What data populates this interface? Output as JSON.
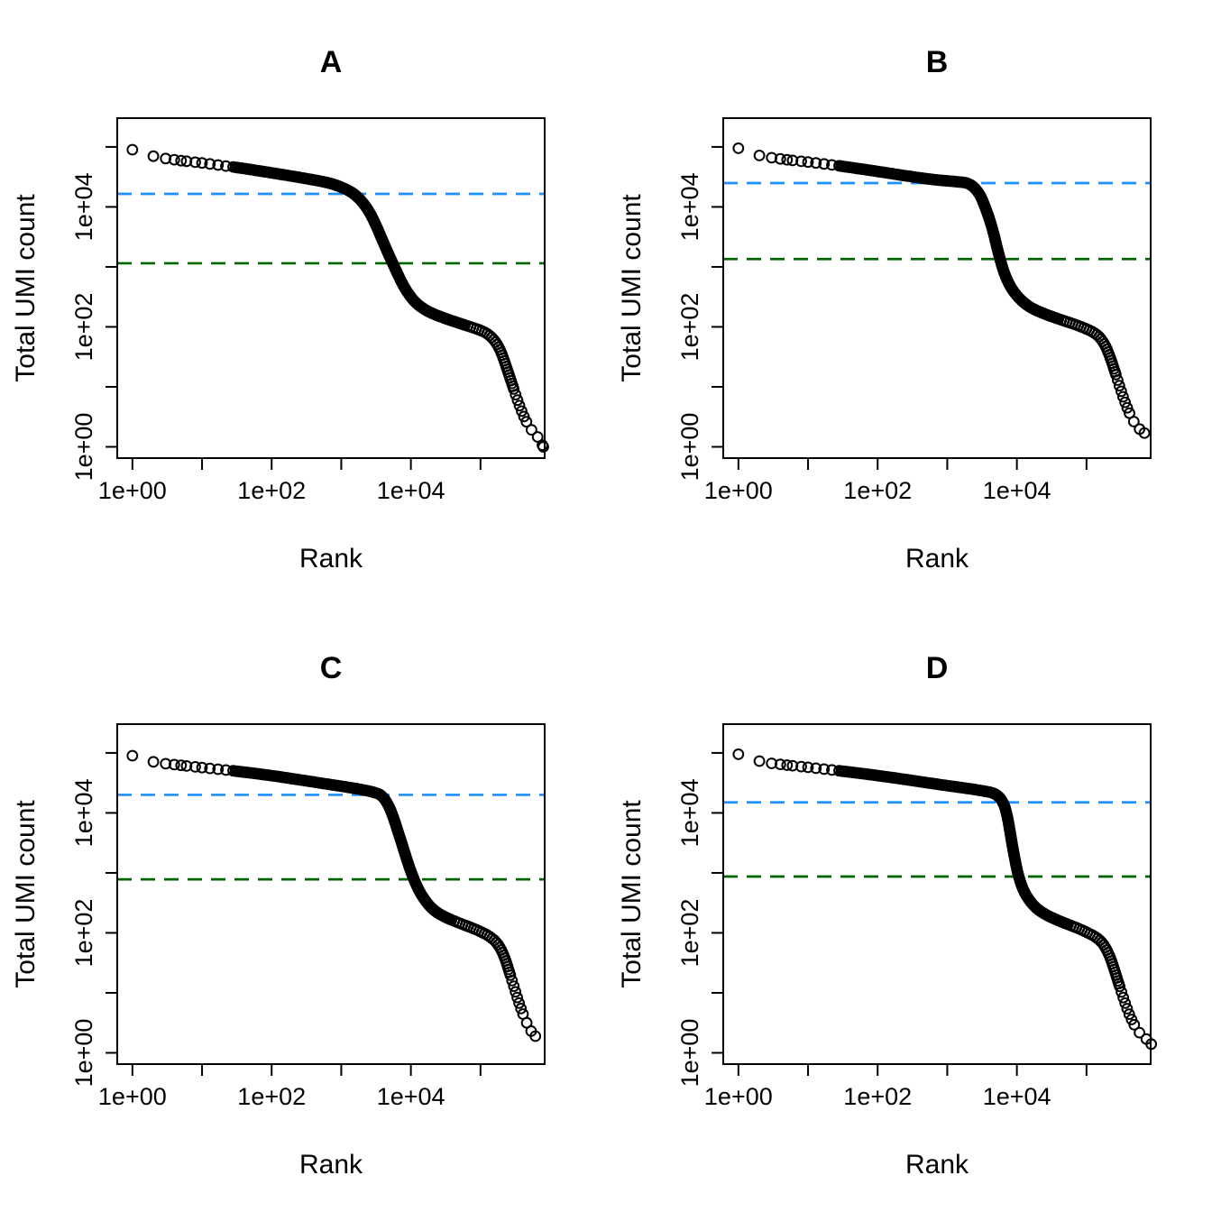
{
  "figure": {
    "background": "#FFFFFF",
    "colors": {
      "point_stroke": "#000000",
      "knee_line": "#1E90FF",
      "inflection_line": "#006400",
      "axis": "#000000"
    },
    "axis": {
      "xlabel": "Rank",
      "ylabel": "Total UMI count",
      "xlim_log10": [
        -0.218,
        5.922
      ],
      "ylim_log10": [
        -0.188,
        5.48
      ],
      "x_ticks": [
        {
          "value": 1,
          "label": "1e+00"
        },
        {
          "value": 10,
          "label": ""
        },
        {
          "value": 100,
          "label": "1e+02"
        },
        {
          "value": 1000,
          "label": ""
        },
        {
          "value": 10000,
          "label": "1e+04"
        },
        {
          "value": 100000,
          "label": ""
        }
      ],
      "y_ticks": [
        {
          "value": 1,
          "label": "1e+00"
        },
        {
          "value": 10,
          "label": ""
        },
        {
          "value": 100,
          "label": "1e+02"
        },
        {
          "value": 1000,
          "label": ""
        },
        {
          "value": 10000,
          "label": "1e+04"
        },
        {
          "value": 100000,
          "label": ""
        }
      ]
    }
  },
  "chart_data": [
    {
      "type": "scatter",
      "title": "A",
      "xlabel": "Rank",
      "ylabel": "Total UMI count",
      "xscale": "log10",
      "yscale": "log10",
      "hlines": [
        {
          "name": "knee",
          "value": 16500,
          "color": "#1E90FF"
        },
        {
          "name": "inflection",
          "value": 1150,
          "color": "#006400"
        }
      ],
      "points": [
        [
          1,
          90000
        ],
        [
          2,
          70000
        ],
        [
          3,
          64000
        ],
        [
          5,
          59000
        ],
        [
          10,
          54000
        ],
        [
          30,
          46000
        ],
        [
          100,
          37000
        ],
        [
          300,
          30000
        ],
        [
          700,
          25000
        ],
        [
          1100,
          20500
        ],
        [
          1550,
          16500
        ],
        [
          2100,
          11500
        ],
        [
          2700,
          7300
        ],
        [
          3300,
          4400
        ],
        [
          4000,
          2600
        ],
        [
          4800,
          1600
        ],
        [
          5800,
          1000
        ],
        [
          7000,
          620
        ],
        [
          8600,
          400
        ],
        [
          11000,
          270
        ],
        [
          15000,
          200
        ],
        [
          22000,
          160
        ],
        [
          36000,
          130
        ],
        [
          60000,
          107
        ],
        [
          90000,
          92
        ],
        [
          120000,
          80
        ],
        [
          150000,
          65
        ],
        [
          180000,
          48
        ],
        [
          210000,
          32
        ],
        [
          240000,
          20
        ],
        [
          275000,
          12.5
        ],
        [
          315000,
          7.8
        ],
        [
          360000,
          5
        ],
        [
          410000,
          3.4
        ],
        [
          465000,
          2.5
        ],
        [
          525000,
          2
        ],
        [
          590000,
          1.7
        ],
        [
          660000,
          1.5
        ],
        [
          800000,
          1
        ]
      ]
    },
    {
      "type": "scatter",
      "title": "B",
      "xlabel": "Rank",
      "ylabel": "Total UMI count",
      "xscale": "log10",
      "yscale": "log10",
      "hlines": [
        {
          "name": "knee",
          "value": 25000,
          "color": "#1E90FF"
        },
        {
          "name": "inflection",
          "value": 1350,
          "color": "#006400"
        }
      ],
      "points": [
        [
          1,
          95000
        ],
        [
          2,
          72000
        ],
        [
          3,
          66000
        ],
        [
          5,
          61000
        ],
        [
          10,
          56000
        ],
        [
          30,
          48000
        ],
        [
          100,
          39000
        ],
        [
          300,
          32000
        ],
        [
          700,
          28000
        ],
        [
          1300,
          26500
        ],
        [
          2100,
          25000
        ],
        [
          2900,
          17000
        ],
        [
          3500,
          10000
        ],
        [
          4100,
          6000
        ],
        [
          4700,
          3400
        ],
        [
          5300,
          1900
        ],
        [
          6000,
          1100
        ],
        [
          7000,
          650
        ],
        [
          8500,
          420
        ],
        [
          11000,
          290
        ],
        [
          15000,
          215
        ],
        [
          23000,
          170
        ],
        [
          40000,
          135
        ],
        [
          65000,
          112
        ],
        [
          95000,
          95
        ],
        [
          125000,
          82
        ],
        [
          155000,
          68
        ],
        [
          185000,
          50
        ],
        [
          215000,
          33
        ],
        [
          245000,
          21
        ],
        [
          280000,
          13
        ],
        [
          320000,
          8
        ],
        [
          365000,
          5.2
        ],
        [
          415000,
          3.6
        ],
        [
          470000,
          2.7
        ],
        [
          530000,
          2.2
        ],
        [
          600000,
          1.9
        ],
        [
          680000,
          1.7
        ]
      ]
    },
    {
      "type": "scatter",
      "title": "C",
      "xlabel": "Rank",
      "ylabel": "Total UMI count",
      "xscale": "log10",
      "yscale": "log10",
      "hlines": [
        {
          "name": "knee",
          "value": 20000,
          "color": "#1E90FF"
        },
        {
          "name": "inflection",
          "value": 780,
          "color": "#006400"
        }
      ],
      "points": [
        [
          1,
          90000
        ],
        [
          2,
          71000
        ],
        [
          3,
          66000
        ],
        [
          5,
          62000
        ],
        [
          10,
          57000
        ],
        [
          30,
          50000
        ],
        [
          100,
          42000
        ],
        [
          300,
          34500
        ],
        [
          800,
          29000
        ],
        [
          1800,
          25000
        ],
        [
          2800,
          22500
        ],
        [
          3800,
          20000
        ],
        [
          4800,
          13500
        ],
        [
          5700,
          8000
        ],
        [
          6600,
          4700
        ],
        [
          7600,
          2800
        ],
        [
          8700,
          1700
        ],
        [
          10000,
          1050
        ],
        [
          11500,
          700
        ],
        [
          13500,
          470
        ],
        [
          16500,
          330
        ],
        [
          21000,
          240
        ],
        [
          30000,
          185
        ],
        [
          50000,
          145
        ],
        [
          80000,
          118
        ],
        [
          110000,
          100
        ],
        [
          140000,
          85
        ],
        [
          170000,
          70
        ],
        [
          200000,
          52
        ],
        [
          230000,
          35
        ],
        [
          260000,
          22
        ],
        [
          295000,
          14
        ],
        [
          335000,
          8.6
        ],
        [
          380000,
          5.5
        ],
        [
          430000,
          3.8
        ],
        [
          485000,
          2.8
        ],
        [
          545000,
          2.2
        ],
        [
          615000,
          1.9
        ]
      ]
    },
    {
      "type": "scatter",
      "title": "D",
      "xlabel": "Rank",
      "ylabel": "Total UMI count",
      "xscale": "log10",
      "yscale": "log10",
      "hlines": [
        {
          "name": "knee",
          "value": 15000,
          "color": "#1E90FF"
        },
        {
          "name": "inflection",
          "value": 870,
          "color": "#006400"
        }
      ],
      "points": [
        [
          1,
          95000
        ],
        [
          2,
          73000
        ],
        [
          3,
          67000
        ],
        [
          5,
          62500
        ],
        [
          10,
          57500
        ],
        [
          30,
          50000
        ],
        [
          100,
          42000
        ],
        [
          300,
          35000
        ],
        [
          800,
          29500
        ],
        [
          2000,
          25500
        ],
        [
          3500,
          23000
        ],
        [
          5000,
          21000
        ],
        [
          6450,
          15000
        ],
        [
          7300,
          8800
        ],
        [
          7900,
          5200
        ],
        [
          8500,
          3100
        ],
        [
          9200,
          1900
        ],
        [
          10000,
          1150
        ],
        [
          11000,
          750
        ],
        [
          12500,
          500
        ],
        [
          15000,
          350
        ],
        [
          19000,
          255
        ],
        [
          27000,
          195
        ],
        [
          45000,
          150
        ],
        [
          75000,
          120
        ],
        [
          105000,
          100
        ],
        [
          135000,
          86
        ],
        [
          165000,
          71
        ],
        [
          195000,
          53
        ],
        [
          225000,
          36
        ],
        [
          255000,
          23
        ],
        [
          290000,
          14.5
        ],
        [
          330000,
          9
        ],
        [
          375000,
          5.8
        ],
        [
          425000,
          4
        ],
        [
          480000,
          3
        ],
        [
          540000,
          2.4
        ],
        [
          610000,
          2
        ],
        [
          690000,
          1.8
        ],
        [
          850000,
          1.4
        ]
      ]
    }
  ]
}
